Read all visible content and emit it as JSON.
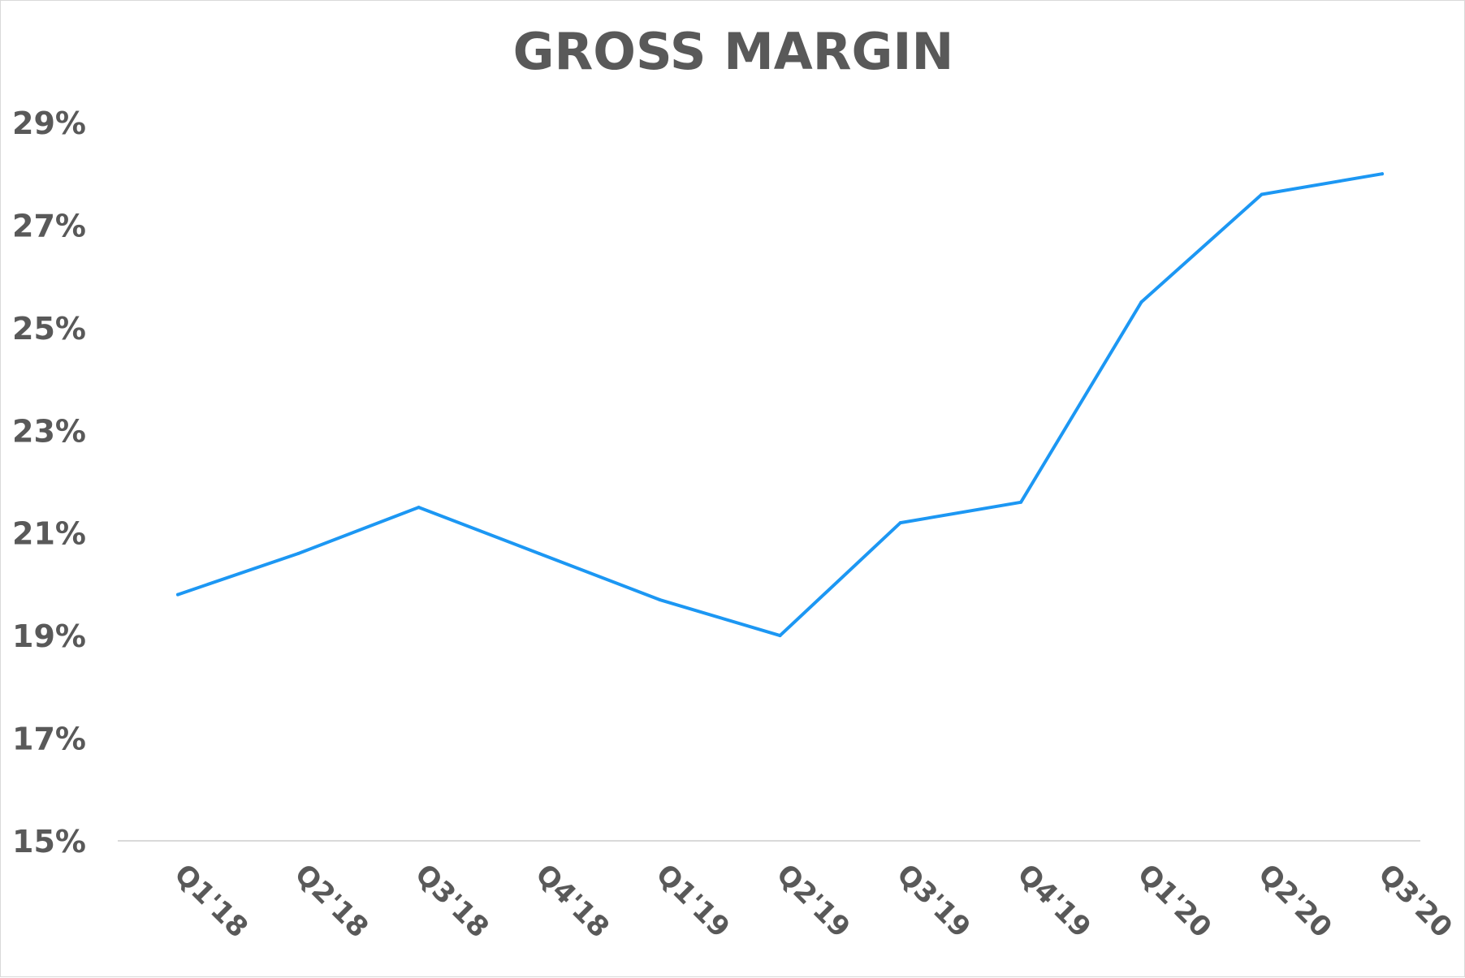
{
  "chart_data": {
    "type": "line",
    "title": "GROSS MARGIN",
    "xlabel": "",
    "ylabel": "",
    "categories": [
      "Q1'18",
      "Q2'18",
      "Q3'18",
      "Q4'18",
      "Q1'19",
      "Q2'19",
      "Q3'19",
      "Q4'19",
      "Q1'20",
      "Q2'20",
      "Q3'20"
    ],
    "series": [
      {
        "values": [
          19.8,
          20.6,
          21.5,
          20.6,
          19.7,
          19.0,
          21.2,
          21.6,
          25.5,
          27.6,
          28.0
        ],
        "color": "#1c97f3"
      }
    ],
    "ylim": [
      15,
      29
    ],
    "yticks": [
      15,
      17,
      19,
      21,
      23,
      25,
      27,
      29
    ],
    "ytick_labels": [
      "15%",
      "17%",
      "19%",
      "21%",
      "23%",
      "25%",
      "27%",
      "29%"
    ],
    "grid": false,
    "legend": "none"
  }
}
